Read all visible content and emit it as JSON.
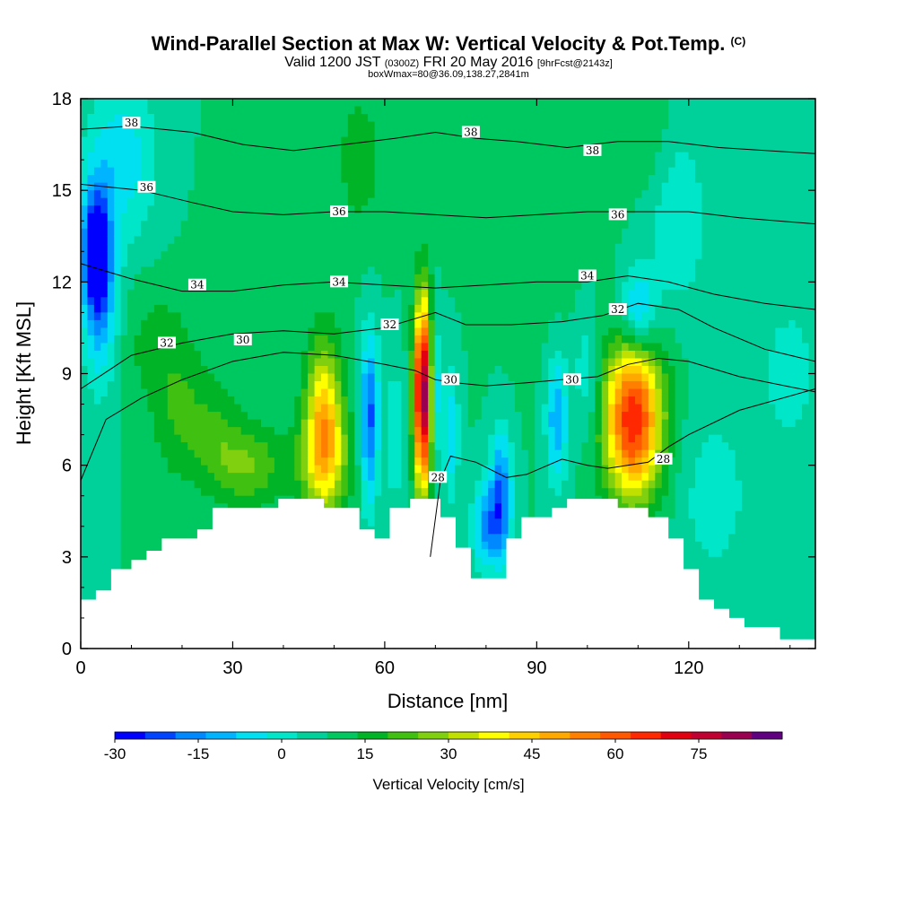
{
  "header": {
    "title": "Wind-Parallel Section at Max W: Vertical Velocity & Pot.Temp.",
    "copyright_mark": "(C)",
    "valid_prefix": "Valid 1200 JST",
    "valid_utc": "(0300Z)",
    "valid_date": "FRI 20 May 2016",
    "forecast_tag": "[9hrFcst@2143z]",
    "box_info": "boxWmax=80@36.09,138.27,2841m"
  },
  "colorbar": {
    "title": "Vertical Velocity [cm/s]",
    "tick_labels": [
      "-30",
      "-15",
      "0",
      "15",
      "30",
      "45",
      "60",
      "75"
    ],
    "tick_values": [
      -30,
      -15,
      0,
      15,
      30,
      45,
      60,
      75
    ],
    "levels": [
      -30,
      90
    ],
    "step": 5,
    "colors": [
      "#0000ff",
      "#0044ff",
      "#0088ff",
      "#00b4ff",
      "#00e0f0",
      "#00e6c8",
      "#00d09a",
      "#00c860",
      "#00b428",
      "#40c010",
      "#80d010",
      "#c0e000",
      "#ffff00",
      "#ffd000",
      "#ffa800",
      "#ff8000",
      "#ff5800",
      "#ff2800",
      "#e00010",
      "#c00030",
      "#9a0050",
      "#600080"
    ]
  },
  "chart_data": {
    "type": "heatmap",
    "title": "Wind-Parallel Section at Max W: Vertical Velocity & Pot.Temp.",
    "xlabel": "Distance [nm]",
    "ylabel": "Height [Kft MSL]",
    "xlim": [
      0,
      145
    ],
    "ylim": [
      0,
      18
    ],
    "x_ticks": [
      0,
      30,
      60,
      90,
      120
    ],
    "y_ticks": [
      0,
      3,
      6,
      9,
      12,
      15,
      18
    ],
    "x_tick_labels": [
      "0",
      "30",
      "60",
      "90",
      "120"
    ],
    "y_tick_labels": [
      "0",
      "3",
      "6",
      "9",
      "12",
      "15",
      "18"
    ],
    "field": "Vertical Velocity [cm/s]",
    "background_value": 5,
    "velocity_cells": [
      {
        "x": 3,
        "y": 13,
        "sx": 2,
        "sy": 1.5,
        "w": -30
      },
      {
        "x": 4,
        "y": 11,
        "sx": 2.5,
        "sy": 2,
        "w": -10
      },
      {
        "x": 8,
        "y": 16,
        "sx": 5,
        "sy": 2,
        "w": -8
      },
      {
        "x": 20,
        "y": 7.5,
        "sx": 4,
        "sy": 1.5,
        "w": 15
      },
      {
        "x": 27,
        "y": 7,
        "sx": 3,
        "sy": 1.2,
        "w": 12
      },
      {
        "x": 33,
        "y": 6,
        "sx": 5,
        "sy": 1,
        "w": 20
      },
      {
        "x": 48,
        "y": 7.5,
        "sx": 2.5,
        "sy": 1.8,
        "w": 38
      },
      {
        "x": 48,
        "y": 6,
        "sx": 4,
        "sy": 1.2,
        "w": 20
      },
      {
        "x": 57,
        "y": 7.5,
        "sx": 1.3,
        "sy": 2,
        "w": -22
      },
      {
        "x": 62,
        "y": 7,
        "sx": 1.2,
        "sy": 1.6,
        "w": -5
      },
      {
        "x": 67.5,
        "y": 8.3,
        "sx": 1.2,
        "sy": 2.2,
        "w": 75
      },
      {
        "x": 70,
        "y": 8.5,
        "sx": 0.7,
        "sy": 1.6,
        "w": -12
      },
      {
        "x": 73,
        "y": 7,
        "sx": 1.2,
        "sy": 1.6,
        "w": -8
      },
      {
        "x": 78,
        "y": 6,
        "sx": 1.8,
        "sy": 1.4,
        "w": 5
      },
      {
        "x": 83,
        "y": 5,
        "sx": 1.5,
        "sy": 1.5,
        "w": -20
      },
      {
        "x": 80,
        "y": 4,
        "sx": 2,
        "sy": 1,
        "w": -15
      },
      {
        "x": 94,
        "y": 7.5,
        "sx": 1.5,
        "sy": 1.5,
        "w": -15
      },
      {
        "x": 100,
        "y": 9,
        "sx": 2,
        "sy": 1.5,
        "w": -5
      },
      {
        "x": 109,
        "y": 7.5,
        "sx": 4,
        "sy": 1.8,
        "w": 60
      },
      {
        "x": 110,
        "y": 11,
        "sx": 2.5,
        "sy": 1,
        "w": -15
      },
      {
        "x": 112,
        "y": 17,
        "sx": 3,
        "sy": 1.5,
        "w": 10
      },
      {
        "x": 118,
        "y": 14,
        "sx": 4,
        "sy": 2,
        "w": -5
      },
      {
        "x": 125,
        "y": 5,
        "sx": 5,
        "sy": 2,
        "w": -3
      },
      {
        "x": 140,
        "y": 9,
        "sx": 5,
        "sy": 2,
        "w": -2
      },
      {
        "x": 15,
        "y": 10,
        "sx": 5,
        "sy": 1.5,
        "w": 12
      },
      {
        "x": 35,
        "y": 13,
        "sx": 6,
        "sy": 2,
        "w": 10
      },
      {
        "x": 55,
        "y": 16,
        "sx": 4,
        "sy": 2,
        "w": 12
      },
      {
        "x": 90,
        "y": 14,
        "sx": 8,
        "sy": 3,
        "w": 8
      }
    ],
    "terrain": [
      [
        0,
        1.6
      ],
      [
        3,
        1.6
      ],
      [
        3,
        1.9
      ],
      [
        6,
        1.9
      ],
      [
        6,
        2.6
      ],
      [
        10,
        2.6
      ],
      [
        10,
        2.9
      ],
      [
        13,
        2.9
      ],
      [
        13,
        3.2
      ],
      [
        16,
        3.2
      ],
      [
        16,
        3.6
      ],
      [
        23,
        3.6
      ],
      [
        23,
        3.9
      ],
      [
        26,
        3.9
      ],
      [
        26,
        4.6
      ],
      [
        39,
        4.6
      ],
      [
        39,
        4.9
      ],
      [
        48,
        4.9
      ],
      [
        48,
        4.6
      ],
      [
        55,
        4.6
      ],
      [
        55,
        3.9
      ],
      [
        58,
        3.9
      ],
      [
        58,
        3.6
      ],
      [
        61,
        3.6
      ],
      [
        61,
        4.6
      ],
      [
        65,
        4.6
      ],
      [
        65,
        4.9
      ],
      [
        71,
        4.9
      ],
      [
        71,
        4.3
      ],
      [
        74,
        4.3
      ],
      [
        74,
        3.3
      ],
      [
        77,
        3.3
      ],
      [
        77,
        2.3
      ],
      [
        84,
        2.3
      ],
      [
        84,
        3.6
      ],
      [
        87,
        3.6
      ],
      [
        87,
        4.3
      ],
      [
        93,
        4.3
      ],
      [
        93,
        4.6
      ],
      [
        96,
        4.6
      ],
      [
        96,
        4.9
      ],
      [
        106,
        4.9
      ],
      [
        106,
        4.6
      ],
      [
        112,
        4.6
      ],
      [
        112,
        4.3
      ],
      [
        116,
        4.3
      ],
      [
        116,
        3.6
      ],
      [
        119,
        3.6
      ],
      [
        119,
        2.6
      ],
      [
        122,
        2.6
      ],
      [
        122,
        1.6
      ],
      [
        125,
        1.6
      ],
      [
        125,
        1.3
      ],
      [
        128,
        1.3
      ],
      [
        128,
        1.0
      ],
      [
        131,
        1.0
      ],
      [
        131,
        0.7
      ],
      [
        138,
        0.7
      ],
      [
        138,
        0.3
      ],
      [
        145,
        0.3
      ]
    ],
    "theta_contours": [
      {
        "label": "28",
        "points": [
          [
            69,
            3
          ],
          [
            71,
            5.5
          ],
          [
            73,
            6.3
          ],
          [
            78,
            6.1
          ],
          [
            84,
            5.6
          ],
          [
            88,
            5.7
          ],
          [
            95,
            6.2
          ],
          [
            100,
            6.0
          ],
          [
            104,
            5.9
          ],
          [
            112,
            6.1
          ],
          [
            116,
            6.6
          ],
          [
            120,
            7.0
          ],
          [
            130,
            7.8
          ],
          [
            145,
            8.5
          ]
        ]
      },
      {
        "label": "30",
        "points": [
          [
            0,
            5.5
          ],
          [
            5,
            7.5
          ],
          [
            12,
            8.2
          ],
          [
            20,
            8.8
          ],
          [
            30,
            9.4
          ],
          [
            40,
            9.7
          ],
          [
            50,
            9.6
          ],
          [
            60,
            9.3
          ],
          [
            66,
            9.1
          ],
          [
            70,
            8.8
          ],
          [
            74,
            8.7
          ],
          [
            80,
            8.6
          ],
          [
            88,
            8.7
          ],
          [
            95,
            8.8
          ],
          [
            102,
            8.9
          ],
          [
            108,
            9.3
          ],
          [
            114,
            9.5
          ],
          [
            120,
            9.4
          ],
          [
            130,
            8.9
          ],
          [
            145,
            8.4
          ]
        ]
      },
      {
        "label": "32",
        "points": [
          [
            0,
            8.5
          ],
          [
            10,
            9.6
          ],
          [
            20,
            10.0
          ],
          [
            30,
            10.3
          ],
          [
            40,
            10.4
          ],
          [
            50,
            10.3
          ],
          [
            60,
            10.5
          ],
          [
            66,
            10.8
          ],
          [
            70,
            11.0
          ],
          [
            76,
            10.6
          ],
          [
            85,
            10.6
          ],
          [
            95,
            10.7
          ],
          [
            103,
            10.9
          ],
          [
            110,
            11.3
          ],
          [
            118,
            11.1
          ],
          [
            125,
            10.5
          ],
          [
            135,
            9.8
          ],
          [
            145,
            9.4
          ]
        ]
      },
      {
        "label": "34",
        "points": [
          [
            0,
            12.6
          ],
          [
            10,
            12.1
          ],
          [
            20,
            11.7
          ],
          [
            30,
            11.7
          ],
          [
            40,
            11.9
          ],
          [
            50,
            12.0
          ],
          [
            60,
            11.9
          ],
          [
            70,
            11.8
          ],
          [
            80,
            11.9
          ],
          [
            90,
            12.0
          ],
          [
            100,
            12.0
          ],
          [
            108,
            12.2
          ],
          [
            116,
            12.0
          ],
          [
            125,
            11.6
          ],
          [
            135,
            11.3
          ],
          [
            145,
            11.1
          ]
        ]
      },
      {
        "label": "36",
        "points": [
          [
            0,
            15.2
          ],
          [
            12,
            15.0
          ],
          [
            22,
            14.6
          ],
          [
            30,
            14.3
          ],
          [
            40,
            14.2
          ],
          [
            50,
            14.3
          ],
          [
            60,
            14.3
          ],
          [
            70,
            14.2
          ],
          [
            80,
            14.1
          ],
          [
            90,
            14.2
          ],
          [
            100,
            14.3
          ],
          [
            110,
            14.3
          ],
          [
            120,
            14.3
          ],
          [
            130,
            14.1
          ],
          [
            145,
            13.9
          ]
        ]
      },
      {
        "label": "38",
        "points": [
          [
            0,
            17.0
          ],
          [
            10,
            17.1
          ],
          [
            22,
            16.9
          ],
          [
            32,
            16.5
          ],
          [
            42,
            16.3
          ],
          [
            52,
            16.5
          ],
          [
            62,
            16.7
          ],
          [
            70,
            16.9
          ],
          [
            78,
            16.7
          ],
          [
            86,
            16.6
          ],
          [
            96,
            16.4
          ],
          [
            106,
            16.6
          ],
          [
            116,
            16.6
          ],
          [
            126,
            16.4
          ],
          [
            145,
            16.2
          ]
        ]
      }
    ],
    "contour_labels": [
      {
        "text": "38",
        "x": 10,
        "y": 17.2
      },
      {
        "text": "36",
        "x": 13,
        "y": 15.1
      },
      {
        "text": "36",
        "x": 51,
        "y": 14.3
      },
      {
        "text": "36",
        "x": 106,
        "y": 14.2
      },
      {
        "text": "38",
        "x": 77,
        "y": 16.9
      },
      {
        "text": "38",
        "x": 101,
        "y": 16.3
      },
      {
        "text": "34",
        "x": 23,
        "y": 11.9
      },
      {
        "text": "34",
        "x": 51,
        "y": 12.0
      },
      {
        "text": "34",
        "x": 100,
        "y": 12.2
      },
      {
        "text": "32",
        "x": 17,
        "y": 10.0
      },
      {
        "text": "32",
        "x": 61,
        "y": 10.6
      },
      {
        "text": "32",
        "x": 106,
        "y": 11.1
      },
      {
        "text": "30",
        "x": 32,
        "y": 10.1
      },
      {
        "text": "30",
        "x": 73,
        "y": 8.8
      },
      {
        "text": "30",
        "x": 97,
        "y": 8.8
      },
      {
        "text": "28",
        "x": 70.5,
        "y": 5.6
      },
      {
        "text": "28",
        "x": 115,
        "y": 6.2
      }
    ]
  }
}
